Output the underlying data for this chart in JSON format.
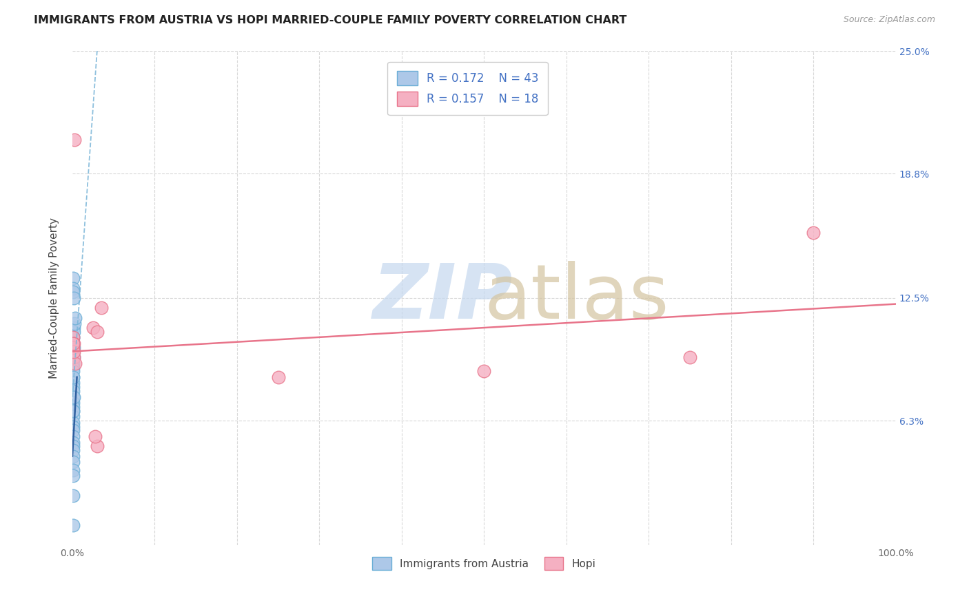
{
  "title": "IMMIGRANTS FROM AUSTRIA VS HOPI MARRIED-COUPLE FAMILY POVERTY CORRELATION CHART",
  "source": "Source: ZipAtlas.com",
  "ylabel": "Married-Couple Family Poverty",
  "xlim": [
    0,
    100
  ],
  "ylim": [
    0,
    25
  ],
  "blue_R": 0.172,
  "blue_N": 43,
  "pink_R": 0.157,
  "pink_N": 18,
  "blue_color": "#adc8e8",
  "pink_color": "#f5b0c2",
  "blue_edge_color": "#6aaed6",
  "pink_edge_color": "#e8748a",
  "blue_line_color": "#7ab5d8",
  "pink_line_color": "#e8748a",
  "blue_solid_color": "#3060a0",
  "legend_text_color": "#4472c4",
  "blue_points_x": [
    0.05,
    0.08,
    0.12,
    0.15,
    0.1,
    0.18,
    0.2,
    0.25,
    0.3,
    0.08,
    0.05,
    0.1,
    0.15,
    0.2,
    0.12,
    0.06,
    0.08,
    0.1,
    0.05,
    0.08,
    0.12,
    0.06,
    0.1,
    0.08,
    0.05,
    0.12,
    0.15,
    0.08,
    0.06,
    0.1,
    0.05,
    0.08,
    0.1,
    0.06,
    0.08,
    0.05,
    0.1,
    0.12,
    0.08,
    0.06,
    0.05,
    0.08,
    0.1
  ],
  "blue_points_y": [
    13.5,
    13.0,
    12.8,
    12.5,
    10.5,
    11.0,
    10.8,
    11.2,
    11.5,
    10.2,
    10.5,
    9.8,
    10.0,
    9.5,
    9.2,
    9.8,
    9.0,
    8.5,
    8.8,
    8.2,
    8.0,
    8.5,
    7.8,
    7.5,
    7.2,
    7.0,
    7.5,
    6.8,
    6.5,
    6.2,
    6.8,
    6.0,
    5.8,
    5.5,
    5.2,
    5.0,
    4.8,
    4.5,
    4.2,
    3.8,
    3.5,
    2.5,
    1.0
  ],
  "pink_points_x": [
    0.05,
    0.1,
    0.2,
    0.15,
    2.5,
    3.0,
    3.5,
    0.25,
    0.12,
    0.3,
    0.18,
    0.08,
    25.0,
    50.0,
    75.0,
    90.0,
    3.0,
    2.8
  ],
  "pink_points_y": [
    10.5,
    9.8,
    10.2,
    9.5,
    11.0,
    10.8,
    12.0,
    20.5,
    10.0,
    9.2,
    9.8,
    10.2,
    8.5,
    8.8,
    9.5,
    15.8,
    5.0,
    5.5
  ],
  "blue_trend_x": [
    -0.5,
    3.0
  ],
  "blue_trend_y": [
    4.5,
    25.0
  ],
  "pink_trend_x": [
    0,
    100
  ],
  "pink_trend_y": [
    9.8,
    12.2
  ],
  "blue_solid_trend_x": [
    0.0,
    0.55
  ],
  "blue_solid_trend_y": [
    4.5,
    8.5
  ],
  "grid_color": "#d8d8d8",
  "background_color": "#ffffff",
  "grid_linestyle": "--",
  "tick_color": "#666666",
  "watermark_zip_color": "#c5d8ef",
  "watermark_atlas_color": "#d4c4a0"
}
